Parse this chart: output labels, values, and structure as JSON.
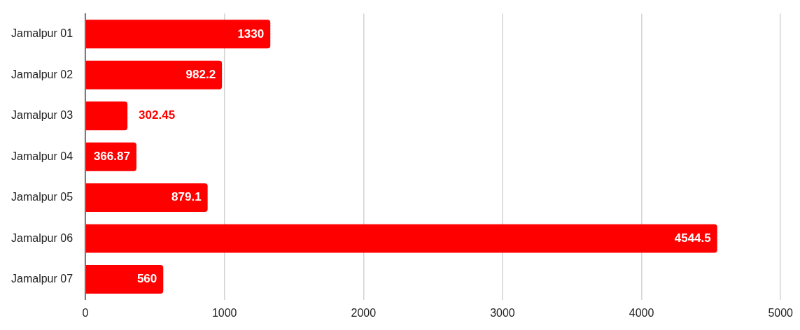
{
  "chart_data": {
    "type": "bar",
    "orientation": "horizontal",
    "categories": [
      "Jamalpur 01",
      "Jamalpur 02",
      "Jamalpur 03",
      "Jamalpur 04",
      "Jamalpur 05",
      "Jamalpur 06",
      "Jamalpur 07"
    ],
    "values": [
      1330,
      982.2,
      302.45,
      366.87,
      879.1,
      4544.5,
      560
    ],
    "color": "#ff0000",
    "xlim": [
      0,
      5000
    ],
    "xticks": [
      0,
      1000,
      2000,
      3000,
      4000,
      5000
    ],
    "grid": "x",
    "legend": false,
    "data_labels": true
  }
}
